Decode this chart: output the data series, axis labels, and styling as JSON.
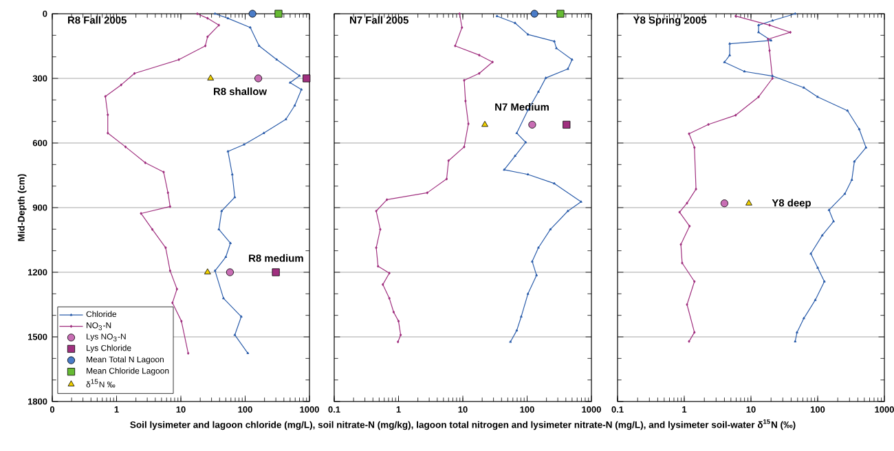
{
  "chart_data": [
    {
      "type": "line",
      "title": "R8 Fall 2005",
      "ylabel": "Mid-Depth (cm)",
      "log": "x",
      "grid": "y",
      "legend": "bottom left",
      "xlim": [
        0.1,
        1000
      ],
      "ylim": [
        1800,
        0
      ],
      "xticks": [
        {
          "value": 0.1,
          "label": "0"
        },
        1,
        10,
        100,
        1000
      ],
      "yticks": [
        0,
        300,
        600,
        900,
        1200,
        1500,
        1800
      ],
      "annotations": [
        "R8 shallow",
        "R8 medium"
      ],
      "series": [
        {
          "name": "Chloride",
          "type": "line",
          "marker": "triangle",
          "color": "#2a5caa",
          "x": [
            34,
            54,
            120,
            165,
            310,
            700,
            500,
            750,
            590,
            430,
            195,
            96,
            54,
            63,
            69,
            43,
            39,
            59,
            50,
            34,
            46,
            87,
            69,
            110
          ],
          "values": [
            0,
            21,
            64,
            149,
            213,
            288,
            320,
            352,
            426,
            490,
            554,
            607,
            639,
            746,
            852,
            916,
            1001,
            1065,
            1129,
            1193,
            1321,
            1406,
            1491,
            1576
          ]
        },
        {
          "name": "NO$_{3}$-N",
          "type": "line",
          "marker": "diamond",
          "color": "#a0307f",
          "x": [
            18,
            26,
            39,
            26,
            24,
            9.3,
            1.9,
            1.18,
            0.67,
            0.73,
            0.73,
            1.38,
            2.8,
            5.4,
            6.3,
            6.8,
            2.4,
            3.6,
            5.8,
            6.8,
            8.7,
            7.4,
            10.2,
            13
          ],
          "values": [
            0,
            21,
            53,
            107,
            149,
            213,
            277,
            330,
            384,
            469,
            554,
            618,
            692,
            735,
            831,
            895,
            927,
            1001,
            1086,
            1193,
            1278,
            1342,
            1427,
            1576
          ]
        },
        {
          "name": "Lys NO$_{3}$-N",
          "type": "scatter",
          "marker": "circle",
          "color": "#c86eb4",
          "x": [
            160,
            58
          ],
          "values": [
            300,
            1200
          ]
        },
        {
          "name": "Lys Chloride",
          "type": "scatter",
          "marker": "square",
          "color": "#a0307f",
          "x": [
            900,
            300
          ],
          "values": [
            300,
            1200
          ]
        },
        {
          "name": "Mean Total N Lagoon",
          "type": "scatter",
          "marker": "circle",
          "color": "#4a7cc8",
          "x": [
            130
          ],
          "values": [
            0
          ]
        },
        {
          "name": "Mean Chloride Lagoon",
          "type": "scatter",
          "marker": "square",
          "color": "#66bb33",
          "x": [
            330
          ],
          "values": [
            0
          ]
        },
        {
          "name": "δ$^{15}$N ‰",
          "type": "scatter",
          "marker": "triangle",
          "color": "#f0d000",
          "x": [
            29,
            26
          ],
          "values": [
            300,
            1200
          ]
        }
      ]
    },
    {
      "type": "line",
      "title": "N7 Fall 2005",
      "xlabel": "Soil lysimeter and lagoon chloride (mg/L),  soil nitrate-N (mg/kg), lagoon total nitrogen and lysimeter nitrate-N (mg/L), and lysimeter soil-water δ$^{15}$N (‰)",
      "log": "x",
      "grid": "y",
      "tick_labels": "x",
      "xlim": [
        0.1,
        1000
      ],
      "ylim": [
        1800,
        0
      ],
      "xticks": [
        0.1,
        1,
        10,
        100,
        1000
      ],
      "yticks": [
        0,
        300,
        600,
        900,
        1200,
        1500,
        1800
      ],
      "annotations": [
        "N7 Medium"
      ],
      "series": [
        {
          "type": "line",
          "marker": "triangle",
          "color": "#2a5caa",
          "x": [
            34,
            65,
            103,
            265,
            285,
            500,
            430,
            195,
            150,
            103,
            69,
            95,
            65,
            44,
            103,
            265,
            690,
            430,
            230,
            150,
            120,
            140,
            103,
            81,
            69,
            55
          ],
          "values": [
            11,
            43,
            96,
            128,
            160,
            213,
            256,
            298,
            362,
            447,
            554,
            597,
            660,
            724,
            746,
            788,
            873,
            916,
            1001,
            1086,
            1150,
            1214,
            1300,
            1406,
            1470,
            1523
          ]
        },
        {
          "type": "line",
          "marker": "diamond",
          "color": "#a0307f",
          "x": [
            8.9,
            9.7,
            7.6,
            18,
            29,
            18,
            10.5,
            11,
            12.2,
            10.5,
            6.0,
            5.6,
            2.8,
            0.66,
            0.45,
            0.52,
            0.45,
            0.48,
            0.72,
            0.57,
            0.72,
            0.84,
            1.0,
            1.08,
            0.98
          ],
          "values": [
            0,
            64,
            149,
            192,
            224,
            277,
            309,
            405,
            511,
            618,
            682,
            767,
            831,
            863,
            916,
            1001,
            1086,
            1172,
            1204,
            1257,
            1321,
            1385,
            1427,
            1491,
            1523
          ]
        },
        {
          "type": "scatter",
          "marker": "circle",
          "color": "#c86eb4",
          "x": [
            120
          ],
          "values": [
            515
          ]
        },
        {
          "type": "scatter",
          "marker": "square",
          "color": "#a0307f",
          "x": [
            410
          ],
          "values": [
            515
          ]
        },
        {
          "type": "scatter",
          "marker": "circle",
          "color": "#4a7cc8",
          "x": [
            130
          ],
          "values": [
            0
          ]
        },
        {
          "type": "scatter",
          "marker": "square",
          "color": "#66bb33",
          "x": [
            330
          ],
          "values": [
            0
          ]
        },
        {
          "type": "scatter",
          "marker": "triangle",
          "color": "#f0d000",
          "x": [
            22
          ],
          "values": [
            515
          ]
        }
      ]
    },
    {
      "type": "line",
      "title": "Y8 Spring 2005",
      "log": "x",
      "grid": "y",
      "tick_labels": "x",
      "xlim": [
        0.1,
        1000
      ],
      "ylim": [
        1800,
        0
      ],
      "xticks": [
        0.1,
        1,
        10,
        100,
        1000
      ],
      "yticks": [
        0,
        300,
        600,
        900,
        1200,
        1500,
        1800
      ],
      "annotations": [
        "Y8 deep"
      ],
      "series": [
        {
          "type": "line",
          "marker": "triangle",
          "color": "#2a5caa",
          "x": [
            46,
            21,
            13,
            13,
            20,
            4.8,
            4.8,
            4.0,
            8.0,
            21,
            62,
            100,
            280,
            420,
            530,
            355,
            325,
            255,
            148,
            173,
            117,
            79,
            100,
            126,
            92,
            62,
            49,
            46
          ],
          "values": [
            0,
            32,
            53,
            86,
            124,
            139,
            193,
            225,
            268,
            289,
            343,
            386,
            450,
            536,
            621,
            686,
            771,
            836,
            911,
            964,
            1029,
            1114,
            1179,
            1243,
            1329,
            1414,
            1479,
            1521
          ]
        },
        {
          "type": "line",
          "marker": "diamond",
          "color": "#a0307f",
          "x": [
            5.9,
            19,
            39,
            18,
            19,
            21,
            13,
            5.9,
            2.3,
            1.18,
            1.42,
            1.5,
            1.1,
            0.85,
            1.2,
            0.89,
            0.93,
            1.42,
            1.1,
            1.42,
            1.18
          ],
          "values": [
            11,
            53,
            86,
            118,
            171,
            300,
            386,
            471,
            514,
            557,
            621,
            814,
            879,
            921,
            986,
            1071,
            1157,
            1243,
            1350,
            1479,
            1521
          ]
        },
        {
          "type": "scatter",
          "marker": "circle",
          "color": "#c86eb4",
          "x": [
            4.0
          ],
          "values": [
            880
          ]
        },
        {
          "type": "scatter",
          "marker": "triangle",
          "color": "#f0d000",
          "x": [
            9.3
          ],
          "values": [
            880
          ]
        }
      ]
    }
  ]
}
